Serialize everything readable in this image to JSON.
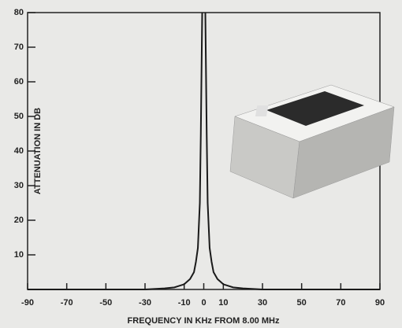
{
  "chart_data": {
    "type": "line",
    "x_label": "FREQUENCY IN KHz FROM 8.00 MHz",
    "y_label": "ATTENUATION IN DB",
    "x": [
      -90,
      -50,
      -30,
      -20,
      -15,
      -10,
      -7,
      -5,
      -4,
      -3,
      -2,
      -1.5,
      -1,
      -0.8,
      0,
      0.8,
      1,
      1.5,
      2,
      3,
      4,
      5,
      7,
      10,
      15,
      20,
      30,
      50,
      90
    ],
    "series": [
      {
        "color": "#1a1a1a",
        "values": [
          0,
          0,
          0,
          0.3,
          0.6,
          1.5,
          3,
          5,
          8,
          12,
          25,
          45,
          70,
          80,
          null,
          80,
          70,
          45,
          25,
          12,
          8,
          5,
          3,
          1.5,
          0.6,
          0.3,
          0,
          0,
          0
        ]
      }
    ],
    "xlim": [
      -90,
      90
    ],
    "ylim": [
      0,
      80
    ],
    "xticks": [
      -90,
      -70,
      -50,
      -30,
      -10,
      0,
      10,
      30,
      50,
      70,
      90
    ],
    "yticks": [
      10,
      20,
      30,
      40,
      50,
      60,
      70,
      80
    ]
  }
}
